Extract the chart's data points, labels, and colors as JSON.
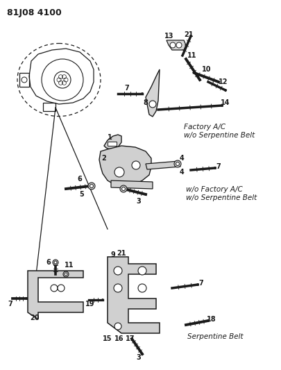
{
  "title": "81J08 4100",
  "bg": "#ffffff",
  "lc": "#1a1a1a",
  "fig_width": 4.05,
  "fig_height": 5.33,
  "dpi": 100,
  "label_factory_ac": "Factory A/C\nw/o Serpentine Belt",
  "label_wo_factory": "w/o Factory A/C\nw/o Serpentine Belt",
  "label_serpentine": "Serpentine Belt"
}
